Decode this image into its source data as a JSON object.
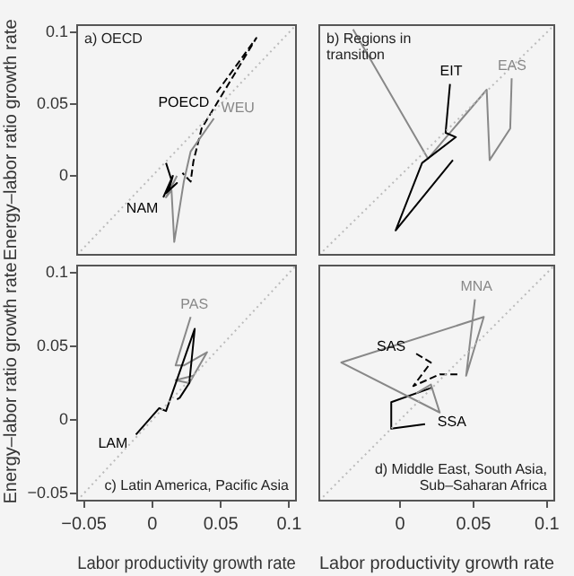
{
  "chart_data": [
    {
      "type": "line",
      "title": "a) OECD",
      "ylabel": "Energy–labor ratio growth rate",
      "xlim": [
        -0.055,
        0.105
      ],
      "ylim": [
        -0.055,
        0.105
      ],
      "yticks": [
        0,
        0.05,
        0.1
      ],
      "tick_labels": "y",
      "marker": "none",
      "series": [
        {
          "type": "line",
          "color": "#bbbbbb",
          "line_style": "dotted",
          "x": [
            -0.055,
            0.105
          ],
          "values": [
            -0.055,
            0.105
          ]
        },
        {
          "name": "NAM",
          "color": "#000000",
          "line_style": "solid",
          "x": [
            0.008,
            0.015,
            0.012,
            0.018,
            0.01,
            0.014,
            0.01
          ],
          "values": [
            -0.015,
            0.0,
            -0.01,
            -0.005,
            -0.012,
            -0.003,
            0.009
          ]
        },
        {
          "name": "WEU",
          "color": "#888888",
          "line_style": "solid",
          "x": [
            0.045,
            0.028,
            0.023,
            0.016,
            0.014,
            0.01,
            0.018
          ],
          "values": [
            0.04,
            0.017,
            -0.004,
            -0.046,
            -0.01,
            -0.015,
            0.0
          ]
        },
        {
          "name": "POECD",
          "color": "#000000",
          "line_style": "dashed",
          "x": [
            0.047,
            0.076,
            0.05,
            0.036,
            0.03,
            0.028,
            0.022
          ],
          "values": [
            0.058,
            0.096,
            0.055,
            0.033,
            0.01,
            -0.004,
            0.002
          ]
        }
      ]
    },
    {
      "type": "line",
      "title": "b) Regions in transition",
      "xlim": [
        -0.055,
        0.105
      ],
      "ylim": [
        -0.055,
        0.105
      ],
      "tick_labels": false,
      "marker": "none",
      "series": [
        {
          "type": "line",
          "color": "#bbbbbb",
          "line_style": "dotted",
          "x": [
            -0.055,
            0.105
          ],
          "values": [
            -0.055,
            0.105
          ]
        },
        {
          "name": "EIT",
          "color": "#000000",
          "line_style": "solid",
          "x": [
            0.034,
            0.031,
            0.038,
            0.015,
            -0.003,
            0.036
          ],
          "values": [
            0.064,
            0.03,
            0.027,
            0.009,
            -0.038,
            0.011
          ]
        },
        {
          "name": "EAS",
          "color": "#888888",
          "line_style": "solid",
          "x": [
            0.076,
            0.075,
            0.061,
            0.059,
            0.019,
            -0.032
          ],
          "values": [
            0.068,
            0.033,
            0.011,
            0.06,
            0.012,
            0.102
          ]
        }
      ]
    },
    {
      "type": "line",
      "annotations": [
        "c) Latin America, Pacific Asia"
      ],
      "xlabel": "Labor productivity growth rate",
      "ylabel": "Energy–labor ratio growth rate",
      "xlim": [
        -0.055,
        0.105
      ],
      "ylim": [
        -0.055,
        0.105
      ],
      "xticks": [
        {
          "value": -0.05,
          "label": "−0.05"
        },
        0,
        0.05,
        0.1
      ],
      "yticks": [
        {
          "value": -0.05,
          "label": "−0.05"
        },
        0,
        0.05,
        0.1
      ],
      "marker": "none",
      "series": [
        {
          "type": "line",
          "color": "#bbbbbb",
          "line_style": "dotted",
          "x": [
            -0.055,
            0.105
          ],
          "values": [
            -0.055,
            0.105
          ]
        },
        {
          "name": "LAM",
          "color": "#000000",
          "line_style": "solid",
          "x": [
            -0.012,
            0.005,
            0.01,
            0.031,
            0.027,
            0.02,
            0.018
          ],
          "values": [
            -0.01,
            0.008,
            0.006,
            0.062,
            0.025,
            0.015,
            0.014
          ]
        },
        {
          "name": "PAS",
          "color": "#888888",
          "line_style": "solid",
          "x": [
            0.028,
            0.017,
            0.023,
            0.04,
            0.027,
            0.017,
            0.03
          ],
          "values": [
            0.07,
            0.037,
            0.037,
            0.046,
            0.025,
            0.027,
            0.03
          ]
        }
      ]
    },
    {
      "type": "line",
      "annotations": [
        "d) Middle East, South Asia,",
        "Sub–Saharan Africa"
      ],
      "xlabel": "Labor productivity growth rate",
      "xlim": [
        -0.055,
        0.105
      ],
      "ylim": [
        -0.055,
        0.105
      ],
      "xticks": [
        0,
        0.05,
        0.1
      ],
      "tick_labels": "x",
      "marker": "none",
      "series": [
        {
          "type": "line",
          "color": "#bbbbbb",
          "line_style": "dotted",
          "x": [
            -0.055,
            0.105
          ],
          "values": [
            -0.055,
            0.105
          ]
        },
        {
          "name": "MNA",
          "color": "#888888",
          "line_style": "solid",
          "x": [
            0.051,
            0.045,
            0.057,
            -0.04,
            0.027,
            0.021,
            0.011
          ],
          "values": [
            0.082,
            0.03,
            0.07,
            0.039,
            0.005,
            0.024,
            0.018
          ]
        },
        {
          "name": "SAS",
          "color": "#000000",
          "line_style": "dashed",
          "x": [
            0.011,
            0.021,
            0.009,
            0.027,
            0.039
          ],
          "values": [
            0.045,
            0.039,
            0.023,
            0.031,
            0.031
          ]
        },
        {
          "name": "SSA",
          "color": "#000000",
          "line_style": "solid",
          "x": [
            0.017,
            -0.006,
            -0.006,
            0.022
          ],
          "values": [
            -0.003,
            -0.006,
            0.012,
            0.022
          ]
        }
      ]
    }
  ]
}
